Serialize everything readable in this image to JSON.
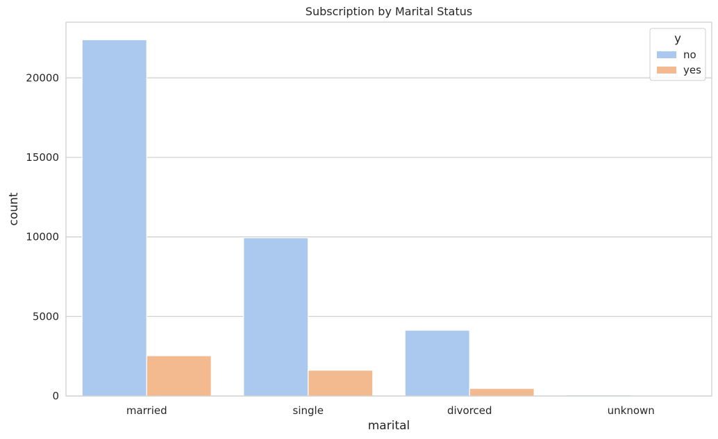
{
  "chart_data": {
    "type": "bar",
    "title": "Subscription by Marital Status",
    "xlabel": "marital",
    "ylabel": "count",
    "categories": [
      "married",
      "single",
      "divorced",
      "unknown"
    ],
    "series": [
      {
        "name": "no",
        "color": "#abc9ee",
        "values": [
          22396,
          9948,
          4136,
          68
        ]
      },
      {
        "name": "yes",
        "color": "#f3b98f",
        "values": [
          2532,
          1620,
          476,
          12
        ]
      }
    ],
    "ylim": [
      0,
      23500
    ],
    "yticks": [
      0,
      5000,
      10000,
      15000,
      20000
    ],
    "grid": true,
    "legend": {
      "title": "y",
      "placement": "top-right"
    }
  }
}
